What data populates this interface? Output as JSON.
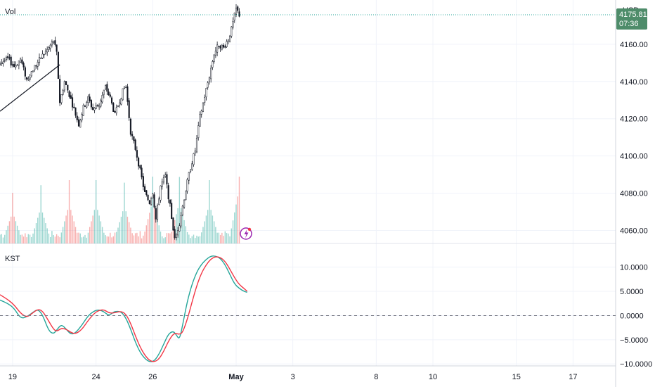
{
  "instrument": {
    "currency": "USD"
  },
  "price_pane": {
    "volume_label": "Vol",
    "last_price": "4175.81",
    "countdown": "07:36",
    "badge_color": "#4e8c6a"
  },
  "kst_pane": {
    "label": "KST"
  },
  "colors": {
    "up": "#26a69a",
    "down": "#ef5350",
    "candle": "#131722",
    "kst_line": "#26a69a",
    "signal_line": "#f23645",
    "grid": "#f0f3fa",
    "event_icon": "#9c27b0"
  },
  "chart_data": [
    {
      "type": "candlestick",
      "ylabel": "USD",
      "yticks": [
        "4160.00",
        "4140.00",
        "4120.00",
        "4100.00",
        "4080.00",
        "4060.00"
      ],
      "ylim": [
        4053,
        4183
      ],
      "last_price": 4175.81,
      "close_path": [
        [
          0,
          4150
        ],
        [
          5,
          4152
        ],
        [
          9,
          4148
        ],
        [
          13,
          4152
        ],
        [
          17,
          4141
        ],
        [
          22,
          4148
        ],
        [
          27,
          4154
        ],
        [
          31,
          4158
        ],
        [
          34,
          4162
        ],
        [
          36,
          4155
        ],
        [
          38,
          4129
        ],
        [
          41,
          4140
        ],
        [
          44,
          4133
        ],
        [
          47,
          4125
        ],
        [
          50,
          4117
        ],
        [
          53,
          4126
        ],
        [
          56,
          4131
        ],
        [
          59,
          4125
        ],
        [
          63,
          4128
        ],
        [
          67,
          4137
        ],
        [
          70,
          4131
        ],
        [
          73,
          4122
        ],
        [
          76,
          4130
        ],
        [
          79,
          4137
        ],
        [
          80,
          4137
        ],
        [
          83,
          4113
        ],
        [
          86,
          4104
        ],
        [
          89,
          4092
        ],
        [
          92,
          4080
        ],
        [
          95,
          4075
        ],
        [
          97,
          4081
        ],
        [
          99,
          4066
        ],
        [
          102,
          4084
        ],
        [
          105,
          4089
        ],
        [
          108,
          4073
        ],
        [
          111,
          4055
        ],
        [
          114,
          4064
        ],
        [
          118,
          4082
        ],
        [
          121,
          4094
        ],
        [
          124,
          4103
        ],
        [
          127,
          4121
        ],
        [
          130,
          4132
        ],
        [
          133,
          4143
        ],
        [
          136,
          4155
        ],
        [
          139,
          4160
        ],
        [
          142,
          4158
        ],
        [
          145,
          4163
        ],
        [
          147,
          4168
        ],
        [
          150,
          4179
        ],
        [
          152,
          4175.81
        ]
      ],
      "trendline": [
        [
          0,
          4124
        ],
        [
          38,
          4149
        ]
      ],
      "volume": [
        {
          "bar": 8,
          "rel": 0.8
        },
        {
          "bar": 26,
          "rel": 0.92
        },
        {
          "bar": 44,
          "rel": 1.0
        },
        {
          "bar": 61,
          "rel": 1.0
        },
        {
          "bar": 79,
          "rel": 0.96
        },
        {
          "bar": 97,
          "rel": 1.1
        },
        {
          "bar": 114,
          "rel": 1.05
        },
        {
          "bar": 133,
          "rel": 1.0
        },
        {
          "bar": 152,
          "rel": 1.4
        }
      ]
    },
    {
      "type": "line",
      "title": "KST",
      "yticks": [
        "10.0000",
        "5.0000",
        "0.0000",
        "−5.0000",
        "−10.0000"
      ],
      "ylim": [
        -10.4,
        14.6
      ],
      "zero_line": true,
      "series": [
        {
          "color": "#26a69a",
          "points": [
            [
              0,
              3.2
            ],
            [
              5,
              2.5
            ],
            [
              9,
              1.5
            ],
            [
              13,
              -0.6
            ],
            [
              17,
              -0.3
            ],
            [
              21,
              0.7
            ],
            [
              24,
              1.3
            ],
            [
              27,
              0.2
            ],
            [
              31,
              -3.2
            ],
            [
              34,
              -3.8
            ],
            [
              36,
              -3.0
            ],
            [
              39,
              -1.8
            ],
            [
              42,
              -2.8
            ],
            [
              45,
              -3.9
            ],
            [
              48,
              -3.6
            ],
            [
              52,
              -2.0
            ],
            [
              56,
              0.0
            ],
            [
              60,
              1.0
            ],
            [
              63,
              1.2
            ],
            [
              66,
              0.8
            ],
            [
              69,
              0.0
            ],
            [
              71,
              0.4
            ],
            [
              73,
              0.9
            ],
            [
              77,
              0.8
            ],
            [
              80,
              -0.5
            ],
            [
              83,
              -2.8
            ],
            [
              86,
              -5.5
            ],
            [
              89,
              -7.6
            ],
            [
              92,
              -8.9
            ],
            [
              95,
              -9.6
            ],
            [
              98,
              -9.4
            ],
            [
              101,
              -8.0
            ],
            [
              104,
              -5.9
            ],
            [
              107,
              -3.8
            ],
            [
              110,
              -3.2
            ],
            [
              112,
              -4.0
            ],
            [
              114,
              -5.0
            ],
            [
              116,
              -2.0
            ],
            [
              119,
              3.0
            ],
            [
              122,
              6.5
            ],
            [
              125,
              9.0
            ],
            [
              128,
              10.6
            ],
            [
              131,
              11.6
            ],
            [
              134,
              12.3
            ],
            [
              137,
              12.3
            ],
            [
              140,
              11.8
            ],
            [
              143,
              10.5
            ],
            [
              146,
              8.5
            ],
            [
              149,
              6.5
            ],
            [
              152,
              5.6
            ],
            [
              155,
              5.0
            ],
            [
              157,
              4.8
            ]
          ]
        },
        {
          "color": "#f23645",
          "points": [
            [
              0,
              4.3
            ],
            [
              5,
              3.3
            ],
            [
              9,
              2.2
            ],
            [
              13,
              0.5
            ],
            [
              17,
              -0.4
            ],
            [
              21,
              0.6
            ],
            [
              24,
              1.3
            ],
            [
              27,
              1.0
            ],
            [
              31,
              -1.2
            ],
            [
              34,
              -2.8
            ],
            [
              36,
              -3.3
            ],
            [
              39,
              -2.6
            ],
            [
              42,
              -2.8
            ],
            [
              45,
              -3.5
            ],
            [
              48,
              -3.8
            ],
            [
              52,
              -2.9
            ],
            [
              56,
              -1.0
            ],
            [
              60,
              0.5
            ],
            [
              63,
              1.1
            ],
            [
              66,
              1.2
            ],
            [
              69,
              0.6
            ],
            [
              71,
              0.5
            ],
            [
              73,
              0.6
            ],
            [
              77,
              0.9
            ],
            [
              80,
              0.3
            ],
            [
              83,
              -1.6
            ],
            [
              86,
              -4.2
            ],
            [
              89,
              -6.5
            ],
            [
              92,
              -8.2
            ],
            [
              95,
              -9.3
            ],
            [
              98,
              -9.6
            ],
            [
              101,
              -9.0
            ],
            [
              104,
              -7.4
            ],
            [
              107,
              -5.3
            ],
            [
              110,
              -3.8
            ],
            [
              112,
              -3.7
            ],
            [
              114,
              -3.9
            ],
            [
              116,
              -3.5
            ],
            [
              119,
              -0.8
            ],
            [
              122,
              2.8
            ],
            [
              125,
              6.2
            ],
            [
              128,
              8.8
            ],
            [
              131,
              10.5
            ],
            [
              134,
              11.7
            ],
            [
              137,
              12.2
            ],
            [
              140,
              12.0
            ],
            [
              143,
              11.2
            ],
            [
              146,
              9.6
            ],
            [
              149,
              7.8
            ],
            [
              152,
              6.4
            ],
            [
              155,
              5.6
            ],
            [
              157,
              5.0
            ]
          ]
        }
      ]
    }
  ],
  "x_axis": {
    "labels": [
      {
        "text": "19",
        "bold": false
      },
      {
        "text": "24",
        "bold": false
      },
      {
        "text": "26",
        "bold": false
      },
      {
        "text": "May",
        "bold": true
      },
      {
        "text": "3",
        "bold": false
      },
      {
        "text": "8",
        "bold": false
      },
      {
        "text": "10",
        "bold": false
      },
      {
        "text": "15",
        "bold": false
      },
      {
        "text": "17",
        "bold": false
      }
    ],
    "label_bars": [
      8,
      61,
      97,
      150,
      186,
      239,
      275,
      328,
      364
    ]
  }
}
